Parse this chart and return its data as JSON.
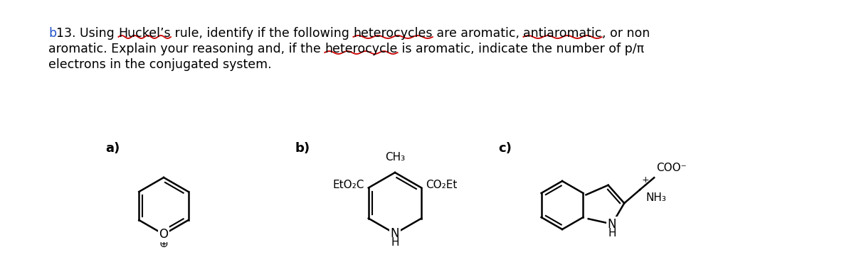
{
  "bg_color": "#ffffff",
  "text_color": "#000000",
  "red_color": "#cc0000",
  "blue_color": "#2255cc",
  "font_size": 12.5,
  "label_font_size": 13,
  "chem_font_size": 11,
  "line1_segments": [
    [
      "b",
      "#2255cc",
      false
    ],
    [
      "13. Using ",
      "#000000",
      false
    ],
    [
      "Huckel’s",
      "#000000",
      false
    ],
    [
      " rule, identify if the following ",
      "#000000",
      false
    ],
    [
      "heterocycles",
      "#000000",
      false
    ],
    [
      " are aromatic, ",
      "#000000",
      false
    ],
    [
      "antiaromatic",
      "#000000",
      false
    ],
    [
      ", or non",
      "#000000",
      false
    ]
  ],
  "line2_segments": [
    [
      "aromatic. Explain your reasoning and, if the ",
      "#000000",
      false
    ],
    [
      "heterocycle",
      "#000000",
      false
    ],
    [
      " is aromatic, indicate the number of p/π",
      "#000000",
      false
    ]
  ],
  "line3_segments": [
    [
      "electrons in the conjugated system.",
      "#000000",
      false
    ]
  ],
  "wavy_words": [
    "Huckel’s",
    "heterocycles",
    "antiaromatic",
    "heterocycle"
  ],
  "label_a": "a)",
  "label_b": "b)",
  "label_c": "c)"
}
